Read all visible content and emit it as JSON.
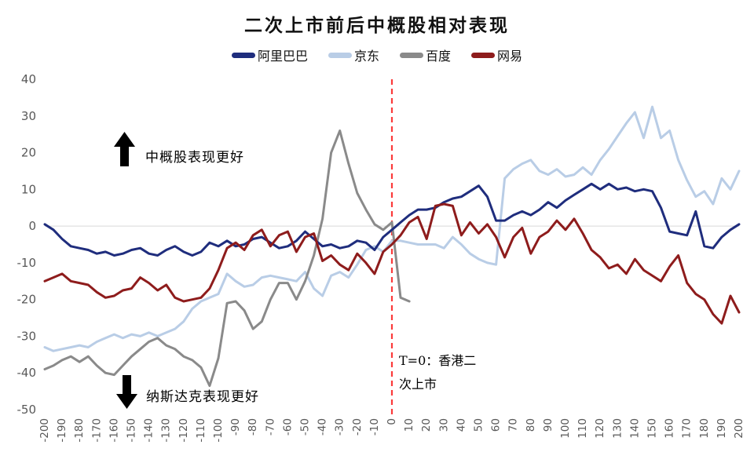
{
  "title": "二次上市前后中概股相对表现",
  "colors": {
    "alibaba": "#1F2D7D",
    "jd": "#B9CDE6",
    "baidu": "#8A8A8A",
    "netease": "#8E1C1C",
    "vline": "#FB3B3B",
    "gridline": "#D9D9D9",
    "axis_text": "#595959",
    "annotation_text": "#000000"
  },
  "annotations": {
    "up": {
      "text": "中概股表现更好",
      "arrow": "up"
    },
    "down": {
      "text": "纳斯达克表现更好",
      "arrow": "down"
    },
    "t0": {
      "text": "T=0：香港二次上市"
    }
  },
  "chart_data": {
    "type": "line",
    "title": "二次上市前后中概股相对表现",
    "xlabel": "",
    "ylabel": "",
    "xlim": [
      -200,
      200
    ],
    "x_tick_step": 10,
    "ylim": [
      -50,
      40
    ],
    "y_tick_step": 10,
    "gridlines_y": [
      0
    ],
    "legend_position": "top",
    "vline": {
      "x": 0,
      "style": "dashed",
      "color": "#FB3B3B",
      "label": "T=0：香港二次上市"
    },
    "x_start": -200,
    "x_step": 5,
    "draw_order": [
      1,
      2,
      0,
      3
    ],
    "series": [
      {
        "name": "阿里巴巴",
        "key": "alibaba",
        "color": "#1F2D7D",
        "values": [
          0.5,
          -1,
          -3.5,
          -5.5,
          -6,
          -6.5,
          -7.5,
          -7,
          -8,
          -7.5,
          -6.5,
          -6,
          -7.5,
          -8,
          -6.5,
          -5.5,
          -7,
          -8,
          -7,
          -4.5,
          -5.5,
          -4,
          -5.5,
          -5,
          -3.5,
          -3,
          -4.5,
          -6,
          -5.5,
          -4,
          -1.5,
          -3.5,
          -5.5,
          -5,
          -6,
          -5.5,
          -4,
          -4.5,
          -6.5,
          -3,
          -1,
          1,
          3,
          4.5,
          4.5,
          5,
          6.5,
          7.5,
          8,
          9.5,
          11,
          8,
          1.5,
          1.5,
          3,
          4,
          3,
          4.5,
          6.5,
          5,
          7,
          8.5,
          10,
          11.5,
          10,
          11.5,
          10,
          10.5,
          9.5,
          10,
          9.5,
          5,
          -1.5,
          -2,
          -2.5,
          4,
          -5.5,
          -6,
          -3,
          -1,
          0.5
        ]
      },
      {
        "name": "京东",
        "key": "jd",
        "color": "#B9CDE6",
        "values": [
          -33,
          -34,
          -33.5,
          -33,
          -32.5,
          -33,
          -31.5,
          -30.5,
          -29.5,
          -30.5,
          -29.5,
          -30,
          -29,
          -30,
          -29,
          -28,
          -26,
          -22.5,
          -20.5,
          -19.5,
          -18.5,
          -13,
          -15,
          -16.5,
          -16,
          -14,
          -13.5,
          -14,
          -14.5,
          -15,
          -12.5,
          -17,
          -19,
          -13.5,
          -12.5,
          -14,
          -10.5,
          -6.5,
          -5.5,
          -7,
          -4,
          -4,
          -4.5,
          -5,
          -5,
          -5,
          -6,
          -3,
          -5,
          -7.5,
          -9,
          -10,
          -10.5,
          13,
          15.5,
          17,
          18,
          15,
          14,
          15.5,
          13.5,
          14,
          16,
          14,
          18,
          21,
          24.5,
          28,
          31,
          24,
          32.5,
          24,
          26,
          18,
          12.5,
          8,
          9.5,
          6,
          13,
          10,
          15
        ]
      },
      {
        "name": "百度",
        "key": "baidu",
        "color": "#8A8A8A",
        "values": [
          -39,
          -38,
          -36.5,
          -35.5,
          -37,
          -35.5,
          -38,
          -40,
          -40.5,
          -38,
          -35.5,
          -33.5,
          -31.5,
          -30.5,
          -32.5,
          -33.5,
          -35.5,
          -36.5,
          -38.5,
          -43.5,
          -36,
          -21,
          -20.5,
          -23,
          -28,
          -26,
          -20,
          -15.5,
          -15.5,
          -20,
          -15,
          -8,
          2,
          20,
          26,
          17,
          9,
          4.5,
          0.5,
          -1,
          1,
          -19.5,
          -20.5
        ]
      },
      {
        "name": "网易",
        "key": "netease",
        "color": "#8E1C1C",
        "values": [
          -15,
          -14,
          -13,
          -15,
          -15.5,
          -16,
          -18,
          -19.5,
          -19,
          -17.5,
          -17,
          -14,
          -15.5,
          -17.5,
          -16,
          -19.5,
          -20.5,
          -20,
          -19.5,
          -17,
          -12,
          -6,
          -4.5,
          -6.5,
          -2.5,
          -1,
          -5.5,
          -2.5,
          -1.5,
          -7,
          -3,
          -2,
          -9.5,
          -8,
          -10.5,
          -12,
          -7.5,
          -10,
          -13,
          -7,
          -5,
          -2.5,
          1,
          2.5,
          -3.5,
          5.5,
          6,
          5.5,
          -2.5,
          1,
          -2,
          0.5,
          -3,
          -8.5,
          -3,
          -0.5,
          -7.5,
          -3,
          -1.5,
          1.5,
          -1,
          2,
          -2,
          -6.5,
          -8.5,
          -11.5,
          -10.5,
          -13,
          -9,
          -12,
          -13.5,
          -15,
          -11,
          -8,
          -15.5,
          -18.5,
          -20,
          -24,
          -26.5,
          -19,
          -23.5
        ]
      }
    ]
  }
}
